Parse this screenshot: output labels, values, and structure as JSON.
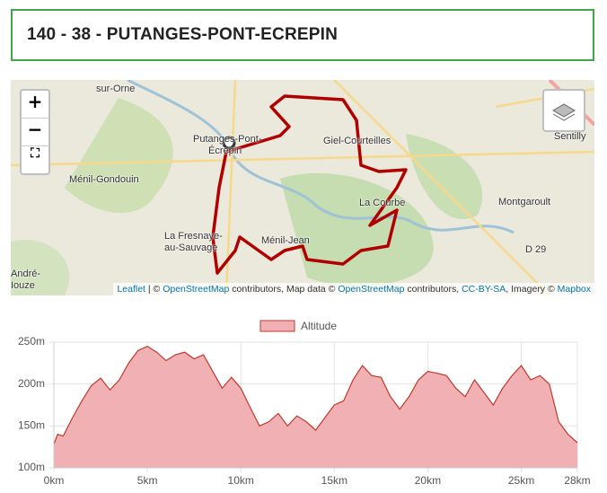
{
  "header": {
    "title": "140 - 38 - Putanges-Pont-Ecrepin"
  },
  "map": {
    "controls": [
      "+",
      "−"
    ],
    "places": [
      "sur-Orne",
      "Putanges-Pont-",
      "Écrepin",
      "Giel-Courteilles",
      "Sentilly",
      "Ménil-Gondouin",
      "La Courbe",
      "Montgaroult",
      "La Fresnaye-",
      "au-Sauvage",
      "Ménil-Jean",
      "D 29",
      "André-",
      "Iouze"
    ],
    "attribution": [
      {
        "text": "Leaflet",
        "link": true
      },
      {
        "text": " | © ",
        "link": false
      },
      {
        "text": "OpenStreetMap",
        "link": true
      },
      {
        "text": " contributors, Map data © ",
        "link": false
      },
      {
        "text": "OpenStreetMap",
        "link": true
      },
      {
        "text": " contributors, ",
        "link": false
      },
      {
        "text": "CC-BY-SA",
        "link": true
      },
      {
        "text": ", Imagery © ",
        "link": false
      },
      {
        "text": "Mapbox",
        "link": true
      }
    ]
  },
  "chart_data": {
    "type": "area",
    "series": [
      {
        "name": "Altitude",
        "color": "#c0392b",
        "fill": "#f0b0b4",
        "x": [
          0,
          0.2,
          0.5,
          1,
          1.5,
          2,
          2.5,
          3,
          3.5,
          4,
          4.5,
          5,
          5.5,
          6,
          6.5,
          7,
          7.5,
          8,
          8.5,
          9,
          9.5,
          10,
          10.5,
          11,
          11.5,
          12,
          12.5,
          13,
          13.5,
          14,
          14.5,
          15,
          15.5,
          16,
          16.5,
          17,
          17.5,
          18,
          18.5,
          19,
          19.5,
          20,
          20.5,
          21,
          21.5,
          22,
          22.5,
          23,
          23.5,
          24,
          24.5,
          25,
          25.5,
          26,
          26.5,
          27,
          27.5,
          28
        ],
        "values": [
          128,
          140,
          138,
          160,
          180,
          198,
          207,
          193,
          205,
          225,
          240,
          245,
          238,
          228,
          235,
          238,
          230,
          235,
          215,
          195,
          208,
          195,
          172,
          150,
          155,
          165,
          150,
          162,
          155,
          145,
          160,
          175,
          180,
          205,
          222,
          210,
          208,
          185,
          170,
          185,
          205,
          215,
          213,
          210,
          195,
          185,
          205,
          190,
          175,
          195,
          210,
          222,
          205,
          210,
          200,
          155,
          140,
          130
        ]
      }
    ],
    "xlim": [
      0,
      28
    ],
    "ylim": [
      100,
      250
    ],
    "xticks": [
      {
        "value": 0,
        "label": "0km"
      },
      {
        "value": 5,
        "label": "5km"
      },
      {
        "value": 10,
        "label": "10km"
      },
      {
        "value": 15,
        "label": "15km"
      },
      {
        "value": 20,
        "label": "20km"
      },
      {
        "value": 25,
        "label": "25km"
      },
      {
        "value": 28,
        "label": "28km"
      }
    ],
    "yticks": [
      {
        "value": 100,
        "label": "100m"
      },
      {
        "value": 150,
        "label": "150m"
      },
      {
        "value": 200,
        "label": "200m"
      },
      {
        "value": 250,
        "label": "250m"
      }
    ],
    "grid": true
  }
}
